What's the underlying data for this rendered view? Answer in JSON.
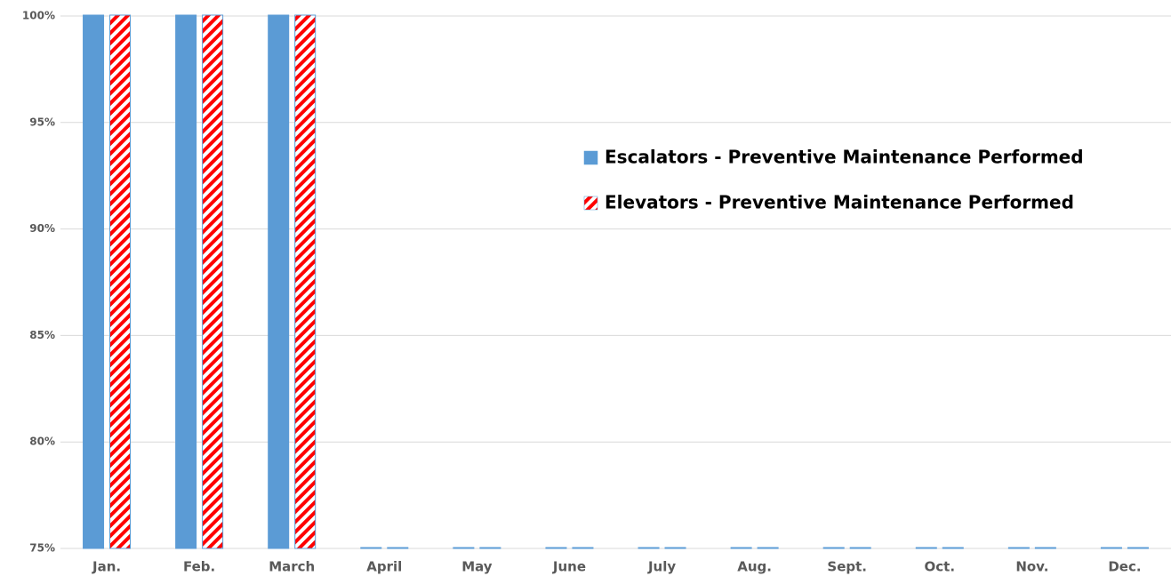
{
  "chart_data": {
    "type": "bar",
    "categories": [
      "Jan.",
      "Feb.",
      "March",
      "April",
      "May",
      "June",
      "July",
      "Aug.",
      "Sept.",
      "Oct.",
      "Nov.",
      "Dec."
    ],
    "series": [
      {
        "name": "Escalators - Preventive Maintenance Performed",
        "color": "#5b9bd5",
        "pattern": "solid",
        "values": [
          100,
          100,
          100,
          75,
          75,
          75,
          75,
          75,
          75,
          75,
          75,
          75
        ]
      },
      {
        "name": "Elevators - Preventive Maintenance Performed",
        "color": "#ff0000",
        "pattern": "hatch",
        "values": [
          100,
          100,
          100,
          75,
          75,
          75,
          75,
          75,
          75,
          75,
          75,
          75
        ]
      }
    ],
    "ylim": [
      75,
      100
    ],
    "yticks": [
      {
        "value": 75,
        "label": "75%"
      },
      {
        "value": 80,
        "label": "80%"
      },
      {
        "value": 85,
        "label": "85%"
      },
      {
        "value": 90,
        "label": "90%"
      },
      {
        "value": 95,
        "label": "95%"
      },
      {
        "value": 100,
        "label": "100%"
      }
    ],
    "grid": true
  }
}
